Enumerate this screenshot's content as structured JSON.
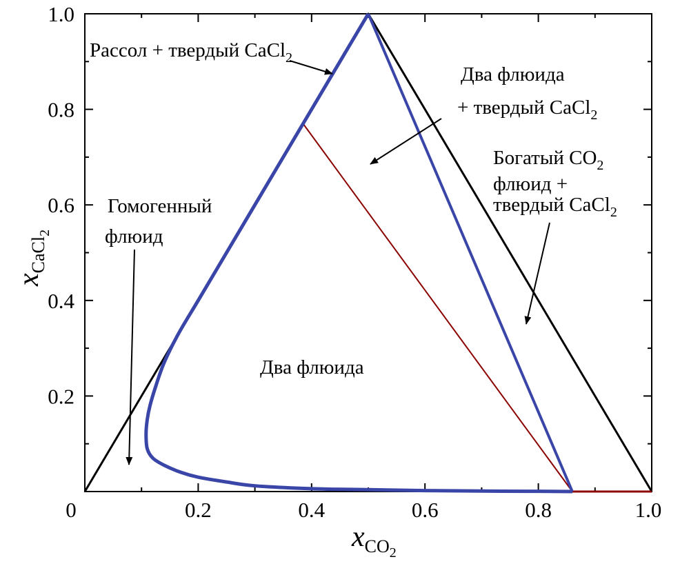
{
  "chart_data": {
    "type": "line",
    "xlim": [
      0,
      1.0
    ],
    "ylim": [
      0,
      1.0
    ],
    "x_ticks": [
      "0",
      "0.2",
      "0.4",
      "0.6",
      "0.8",
      "1.0"
    ],
    "y_ticks": [
      "0.2",
      "0.4",
      "0.6",
      "0.8",
      "1.0"
    ],
    "xlabel": {
      "main": "x",
      "sub": "CO",
      "subsub": "2"
    },
    "ylabel": {
      "main": "x",
      "sub": "CaCl",
      "subsub": "2"
    },
    "grid": false,
    "colors": {
      "boundary": "#000000",
      "binodal": "#3a45a8",
      "tie_line": "#8b0000"
    },
    "series": [
      {
        "role": "outer-triangle",
        "x": [
          0.0,
          0.5,
          1.0
        ],
        "y": [
          0.0,
          1.0,
          0.0
        ]
      },
      {
        "role": "binodal-curve",
        "x": [
          0.5,
          0.45,
          0.4,
          0.35,
          0.3,
          0.25,
          0.2,
          0.165,
          0.14,
          0.125,
          0.115,
          0.11,
          0.108,
          0.11,
          0.12,
          0.14,
          0.17,
          0.2,
          0.25,
          0.3,
          0.4,
          0.5,
          0.6,
          0.7,
          0.8,
          0.86
        ],
        "y": [
          1.0,
          0.9,
          0.8,
          0.7,
          0.6,
          0.5,
          0.4,
          0.33,
          0.27,
          0.22,
          0.18,
          0.15,
          0.12,
          0.09,
          0.07,
          0.055,
          0.04,
          0.03,
          0.02,
          0.012,
          0.006,
          0.004,
          0.002,
          0.001,
          0.0005,
          0.0
        ]
      },
      {
        "role": "three-phase-edge",
        "x": [
          0.5,
          0.86
        ],
        "y": [
          1.0,
          0.0
        ]
      },
      {
        "role": "tie-line",
        "x": [
          0.385,
          0.86
        ],
        "y": [
          0.77,
          0.0
        ]
      },
      {
        "role": "base-segment",
        "x": [
          0.86,
          1.0
        ],
        "y": [
          0.0,
          0.0
        ]
      }
    ],
    "annotations": [
      {
        "id": "brine-solid",
        "lines": [
          {
            "text": "Рассол + твердый CaCl",
            "sub": "2"
          }
        ]
      },
      {
        "id": "two-fluids-solid",
        "lines": [
          {
            "text": "Два флюида",
            "sub": ""
          },
          {
            "text": "+ твердый CaCl",
            "sub": "2"
          }
        ]
      },
      {
        "id": "co2-rich-solid",
        "lines": [
          {
            "text": "Богатый CO",
            "sub": "2"
          },
          {
            "text": "флюид +",
            "sub": ""
          },
          {
            "text": "твердый CaCl",
            "sub": "2"
          }
        ]
      },
      {
        "id": "homogeneous",
        "lines": [
          {
            "text": "Гомогенный",
            "sub": ""
          },
          {
            "text": "флюид",
            "sub": ""
          }
        ]
      },
      {
        "id": "two-fluids",
        "lines": [
          {
            "text": "Два флюида",
            "sub": ""
          }
        ]
      }
    ]
  }
}
